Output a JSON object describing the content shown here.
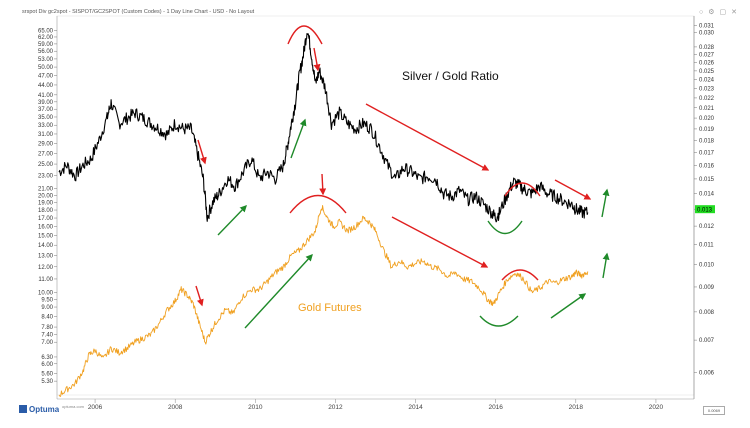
{
  "header": {
    "title": "srspot Div gc2spot - SISPOT/GC2SPOT (Custom Codes) - 1 Day Line Chart - USD - No Layout"
  },
  "window_icons": [
    "minimize-icon",
    "settings-icon",
    "maximize-icon",
    "close-icon"
  ],
  "footer": {
    "brand": "Optuma",
    "url": "optuma.com",
    "zoom_level": "0.0069"
  },
  "colors": {
    "silver_gold": "#000000",
    "gold": "#f0a020",
    "red_arrow": "#e02020",
    "green_arrow": "#1f8a2a",
    "label_orange": "#f0a020",
    "current_price_bg": "#22dd22"
  },
  "chart_data": {
    "type": "line",
    "x_ticks": [
      "2006",
      "2008",
      "2010",
      "2012",
      "2014",
      "2016",
      "2018",
      "2020"
    ],
    "left_axis": {
      "scale": "log",
      "ticks": [
        "65.00",
        "62.00",
        "59.00",
        "56.00",
        "53.00",
        "50.00",
        "47.00",
        "44.00",
        "41.00",
        "39.00",
        "37.00",
        "35.00",
        "33.00",
        "31.00",
        "29.00",
        "27.00",
        "25.00",
        "23.00",
        "21.00",
        "20.00",
        "19.00",
        "18.00",
        "17.00",
        "16.00",
        "15.00",
        "14.00",
        "13.00",
        "12.00",
        "11.00",
        "10.00",
        "9.50",
        "9.00",
        "8.40",
        "7.80",
        "7.40",
        "7.00",
        "6.30",
        "6.00",
        "5.60",
        "5.30"
      ]
    },
    "right_axis": {
      "scale": "log",
      "ticks": [
        "0.031",
        "0.030",
        "0.028",
        "0.027",
        "0.026",
        "0.025",
        "0.024",
        "0.023",
        "0.022",
        "0.021",
        "0.020",
        "0.019",
        "0.018",
        "0.017",
        "0.016",
        "0.015",
        "0.014",
        "0.013",
        "0.012",
        "0.011",
        "0.010",
        "0.009",
        "0.008",
        "0.007",
        "0.006"
      ],
      "current_value": "0.013"
    },
    "annotations": [
      {
        "text": "Silver / Gold Ratio"
      },
      {
        "text": "Gold Futures"
      }
    ],
    "series": [
      {
        "name": "Silver / Gold Ratio",
        "axis": "right",
        "points": [
          [
            2005.1,
            0.0155
          ],
          [
            2005.3,
            0.016
          ],
          [
            2005.5,
            0.0152
          ],
          [
            2005.7,
            0.016
          ],
          [
            2005.9,
            0.0165
          ],
          [
            2006.1,
            0.018
          ],
          [
            2006.3,
            0.02
          ],
          [
            2006.4,
            0.0215
          ],
          [
            2006.6,
            0.0195
          ],
          [
            2006.8,
            0.02
          ],
          [
            2007.0,
            0.0205
          ],
          [
            2007.2,
            0.02
          ],
          [
            2007.4,
            0.0195
          ],
          [
            2007.6,
            0.019
          ],
          [
            2007.8,
            0.0185
          ],
          [
            2008.0,
            0.0195
          ],
          [
            2008.2,
            0.019
          ],
          [
            2008.4,
            0.019
          ],
          [
            2008.55,
            0.017
          ],
          [
            2008.7,
            0.015
          ],
          [
            2008.8,
            0.0125
          ],
          [
            2008.95,
            0.0135
          ],
          [
            2009.1,
            0.014
          ],
          [
            2009.3,
            0.015
          ],
          [
            2009.5,
            0.0145
          ],
          [
            2009.7,
            0.0155
          ],
          [
            2009.9,
            0.0165
          ],
          [
            2010.1,
            0.015
          ],
          [
            2010.3,
            0.0155
          ],
          [
            2010.5,
            0.015
          ],
          [
            2010.7,
            0.016
          ],
          [
            2010.8,
            0.0175
          ],
          [
            2010.9,
            0.0195
          ],
          [
            2011.0,
            0.0215
          ],
          [
            2011.1,
            0.0245
          ],
          [
            2011.2,
            0.027
          ],
          [
            2011.3,
            0.0305
          ],
          [
            2011.4,
            0.027
          ],
          [
            2011.5,
            0.0235
          ],
          [
            2011.6,
            0.025
          ],
          [
            2011.75,
            0.023
          ],
          [
            2011.9,
            0.0195
          ],
          [
            2012.1,
            0.0205
          ],
          [
            2012.3,
            0.0195
          ],
          [
            2012.5,
            0.019
          ],
          [
            2012.7,
            0.0195
          ],
          [
            2012.9,
            0.019
          ],
          [
            2013.1,
            0.0175
          ],
          [
            2013.3,
            0.016
          ],
          [
            2013.5,
            0.015
          ],
          [
            2013.7,
            0.0158
          ],
          [
            2013.9,
            0.0155
          ],
          [
            2014.1,
            0.015
          ],
          [
            2014.3,
            0.0152
          ],
          [
            2014.5,
            0.015
          ],
          [
            2014.7,
            0.014
          ],
          [
            2014.9,
            0.0138
          ],
          [
            2015.1,
            0.0142
          ],
          [
            2015.3,
            0.0136
          ],
          [
            2015.5,
            0.0138
          ],
          [
            2015.7,
            0.0133
          ],
          [
            2015.9,
            0.0128
          ],
          [
            2016.0,
            0.0125
          ],
          [
            2016.1,
            0.0128
          ],
          [
            2016.3,
            0.014
          ],
          [
            2016.45,
            0.0148
          ],
          [
            2016.6,
            0.0145
          ],
          [
            2016.75,
            0.0142
          ],
          [
            2016.9,
            0.014
          ],
          [
            2017.1,
            0.0145
          ],
          [
            2017.3,
            0.014
          ],
          [
            2017.5,
            0.0138
          ],
          [
            2017.7,
            0.0135
          ],
          [
            2017.9,
            0.0133
          ],
          [
            2018.0,
            0.013
          ],
          [
            2018.15,
            0.0128
          ],
          [
            2018.3,
            0.0128
          ]
        ]
      },
      {
        "name": "Gold Futures",
        "axis": "left",
        "points": [
          [
            2005.1,
            4.8
          ],
          [
            2005.3,
            5.0
          ],
          [
            2005.5,
            5.2
          ],
          [
            2005.7,
            5.7
          ],
          [
            2005.85,
            6.4
          ],
          [
            2006.0,
            6.6
          ],
          [
            2006.2,
            6.2
          ],
          [
            2006.4,
            6.7
          ],
          [
            2006.6,
            6.5
          ],
          [
            2006.8,
            6.7
          ],
          [
            2007.0,
            7.0
          ],
          [
            2007.2,
            7.2
          ],
          [
            2007.4,
            7.4
          ],
          [
            2007.6,
            8.0
          ],
          [
            2007.8,
            8.8
          ],
          [
            2008.0,
            9.4
          ],
          [
            2008.15,
            10.2
          ],
          [
            2008.3,
            9.8
          ],
          [
            2008.45,
            9.2
          ],
          [
            2008.6,
            8.0
          ],
          [
            2008.75,
            7.0
          ],
          [
            2008.9,
            7.6
          ],
          [
            2009.05,
            8.2
          ],
          [
            2009.25,
            8.8
          ],
          [
            2009.45,
            8.6
          ],
          [
            2009.65,
            9.6
          ],
          [
            2009.9,
            10.2
          ],
          [
            2010.1,
            10.2
          ],
          [
            2010.3,
            10.8
          ],
          [
            2010.5,
            11.5
          ],
          [
            2010.7,
            12.0
          ],
          [
            2010.9,
            13.0
          ],
          [
            2011.1,
            13.5
          ],
          [
            2011.3,
            14.5
          ],
          [
            2011.5,
            15.5
          ],
          [
            2011.65,
            18.5
          ],
          [
            2011.8,
            17.0
          ],
          [
            2011.95,
            16.0
          ],
          [
            2012.1,
            16.5
          ],
          [
            2012.3,
            15.5
          ],
          [
            2012.5,
            16.0
          ],
          [
            2012.7,
            17.0
          ],
          [
            2012.85,
            16.5
          ],
          [
            2013.0,
            15.5
          ],
          [
            2013.2,
            13.5
          ],
          [
            2013.4,
            12.0
          ],
          [
            2013.6,
            12.5
          ],
          [
            2013.8,
            12.0
          ],
          [
            2014.0,
            12.3
          ],
          [
            2014.2,
            12.5
          ],
          [
            2014.4,
            12.0
          ],
          [
            2014.6,
            11.8
          ],
          [
            2014.8,
            11.2
          ],
          [
            2015.0,
            11.5
          ],
          [
            2015.2,
            11.0
          ],
          [
            2015.4,
            10.8
          ],
          [
            2015.6,
            10.3
          ],
          [
            2015.8,
            9.5
          ],
          [
            2015.95,
            9.2
          ],
          [
            2016.1,
            10.0
          ],
          [
            2016.3,
            11.0
          ],
          [
            2016.5,
            11.5
          ],
          [
            2016.7,
            11.0
          ],
          [
            2016.9,
            10.0
          ],
          [
            2017.1,
            10.3
          ],
          [
            2017.3,
            10.8
          ],
          [
            2017.5,
            10.7
          ],
          [
            2017.7,
            11.0
          ],
          [
            2017.9,
            11.2
          ],
          [
            2018.0,
            11.5
          ],
          [
            2018.15,
            11.3
          ],
          [
            2018.3,
            11.6
          ]
        ]
      }
    ]
  }
}
